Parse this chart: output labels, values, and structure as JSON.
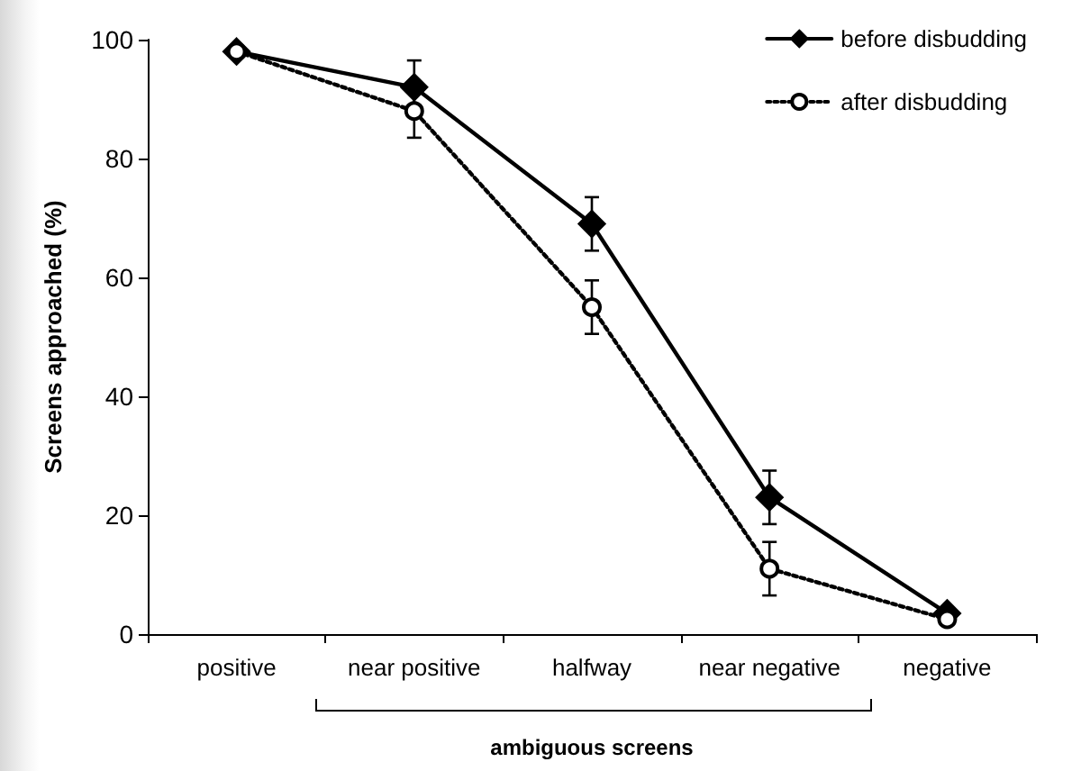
{
  "chart_data": {
    "type": "line",
    "ylabel": "Screens approached (%)",
    "categories": [
      "positive",
      "near positive",
      "halfway",
      "near negative",
      "negative"
    ],
    "series": [
      {
        "name": "before disbudding",
        "color": "#000000",
        "marker": "diamond",
        "line_style": "solid",
        "values": [
          98,
          92,
          69,
          23,
          3.5
        ],
        "errors": [
          null,
          4.5,
          4.5,
          4.5,
          null
        ]
      },
      {
        "name": "after disbudding",
        "color": "#000000",
        "marker": "circle",
        "line_style": "dotted",
        "values": [
          98,
          88,
          55,
          11,
          2.5
        ],
        "errors": [
          null,
          4.5,
          4.5,
          4.5,
          null
        ]
      }
    ],
    "ylim": [
      0,
      100
    ],
    "yticks": [
      0,
      20,
      40,
      60,
      80,
      100
    ],
    "grid": false,
    "legend": "top right",
    "annotations": [
      "ambiguous screens"
    ]
  }
}
